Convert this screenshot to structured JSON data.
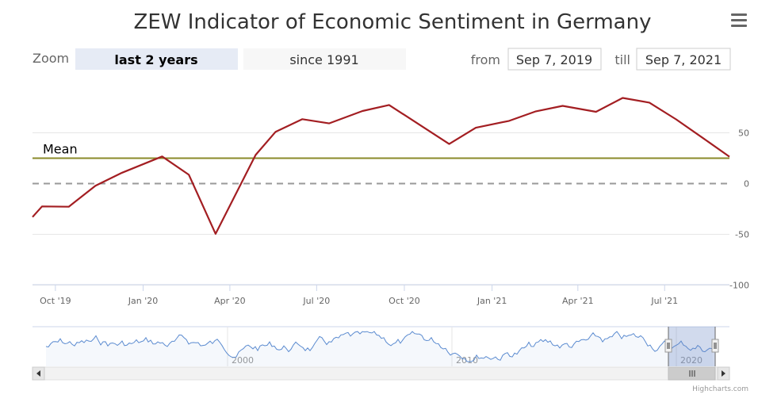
{
  "chart_data": {
    "type": "line",
    "title": "ZEW Indicator of Economic Sentiment in Germany",
    "zoom": {
      "label": "Zoom",
      "buttons": [
        "last 2 years",
        "since 1991"
      ],
      "selected": "last 2 years"
    },
    "range": {
      "from_label": "from",
      "from_value": "Sep 7, 2019",
      "till_label": "till",
      "till_value": "Sep 7, 2021"
    },
    "x_ticks": [
      "Oct '19",
      "Jan '20",
      "Apr '20",
      "Jul '20",
      "Oct '20",
      "Jan '21",
      "Apr '21",
      "Jul '21"
    ],
    "x_tick_dates": [
      "2019-10-01",
      "2020-01-01",
      "2020-04-01",
      "2020-07-01",
      "2020-10-01",
      "2021-01-01",
      "2021-04-01",
      "2021-07-01"
    ],
    "xlim": [
      "2019-09-07",
      "2021-09-07"
    ],
    "y_ticks": [
      50,
      0,
      -50,
      -100
    ],
    "ylim": [
      -100,
      100
    ],
    "series": [
      {
        "color": "#a31e22",
        "x": [
          "2019-09-07",
          "2019-09-17",
          "2019-10-15",
          "2019-11-12",
          "2019-12-10",
          "2020-01-21",
          "2020-02-18",
          "2020-03-17",
          "2020-04-28",
          "2020-05-19",
          "2020-06-16",
          "2020-07-14",
          "2020-08-18",
          "2020-09-15",
          "2020-10-20",
          "2020-11-17",
          "2020-12-15",
          "2021-01-19",
          "2021-02-16",
          "2021-03-16",
          "2021-04-20",
          "2021-05-18",
          "2021-06-15",
          "2021-07-13",
          "2021-08-17",
          "2021-09-07"
        ],
        "values": [
          -33,
          -22.5,
          -22.8,
          -2.1,
          10.7,
          26.7,
          8.7,
          -49.5,
          28.2,
          51.0,
          63.4,
          59.3,
          71.5,
          77.4,
          56.1,
          39.0,
          55.0,
          61.8,
          71.2,
          76.6,
          70.7,
          84.4,
          79.8,
          63.3,
          40.4,
          26.5
        ]
      }
    ],
    "plot_lines": [
      {
        "label": "Mean",
        "value": 25,
        "color": "#8b8b2a"
      },
      {
        "label": "",
        "value": 0,
        "color": "#999999"
      }
    ],
    "navigator": {
      "ticks": [
        "2000",
        "2010",
        "2020"
      ]
    },
    "grid": true,
    "credits": "Highcharts.com",
    "menu_icon": "hamburger-menu-icon"
  }
}
